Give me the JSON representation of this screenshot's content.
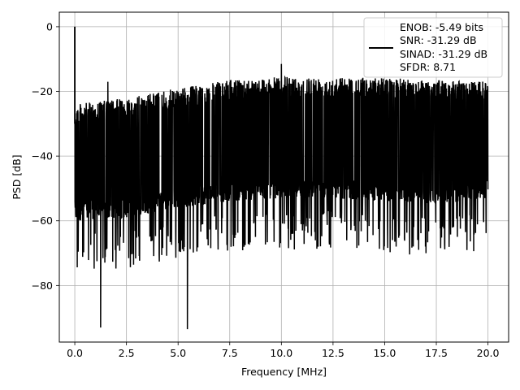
{
  "chart_data": {
    "type": "line",
    "title": "",
    "xlabel": "Frequency [MHz]",
    "ylabel": "PSD [dB]",
    "xlim": [
      -0.75,
      21.0
    ],
    "ylim": [
      -97.5,
      4.5
    ],
    "grid": true,
    "legend_placement": "top-right",
    "x_ticks": [
      0.0,
      2.5,
      5.0,
      7.5,
      10.0,
      12.5,
      15.0,
      17.5,
      20.0
    ],
    "x_tick_labels": [
      "0.0",
      "2.5",
      "5.0",
      "7.5",
      "10.0",
      "12.5",
      "15.0",
      "17.5",
      "20.0"
    ],
    "y_ticks": [
      0,
      -20,
      -40,
      -60,
      -80
    ],
    "y_tick_labels": [
      "0",
      "−20",
      "−40",
      "−60",
      "−80"
    ],
    "series": [
      {
        "name": "ENOB: -5.49 bits\nSNR: -31.29 dB\nSINAD: -31.29 dB\nSFDR: 8.71",
        "color": "#000000",
        "x_range": [
          0.0,
          20.0
        ],
        "peak": {
          "x": 0.0,
          "y": 0.0
        },
        "spurs": [
          {
            "x": 1.25,
            "y": -93.0
          },
          {
            "x": 5.45,
            "y": -93.5
          },
          {
            "x": 1.6,
            "y": -17.0
          },
          {
            "x": 10.0,
            "y": -11.5
          }
        ],
        "upper_envelope": [
          {
            "x": 0.0,
            "y": -24.0
          },
          {
            "x": 2.5,
            "y": -22.0
          },
          {
            "x": 5.0,
            "y": -19.0
          },
          {
            "x": 7.5,
            "y": -16.5
          },
          {
            "x": 10.0,
            "y": -15.5
          },
          {
            "x": 12.5,
            "y": -15.5
          },
          {
            "x": 15.0,
            "y": -15.8
          },
          {
            "x": 17.5,
            "y": -16.5
          },
          {
            "x": 20.0,
            "y": -17.0
          }
        ],
        "lower_envelope": [
          {
            "x": 0.0,
            "y": -64.0
          },
          {
            "x": 2.5,
            "y": -63.0
          },
          {
            "x": 5.0,
            "y": -60.0
          },
          {
            "x": 7.5,
            "y": -58.0
          },
          {
            "x": 10.0,
            "y": -57.0
          },
          {
            "x": 12.5,
            "y": -57.0
          },
          {
            "x": 15.0,
            "y": -58.0
          },
          {
            "x": 17.5,
            "y": -59.0
          },
          {
            "x": 20.0,
            "y": -57.0
          }
        ]
      }
    ],
    "legend_lines": [
      "ENOB: -5.49 bits",
      "SNR: -31.29 dB",
      "SINAD: -31.29 dB",
      "SFDR: 8.71"
    ]
  }
}
